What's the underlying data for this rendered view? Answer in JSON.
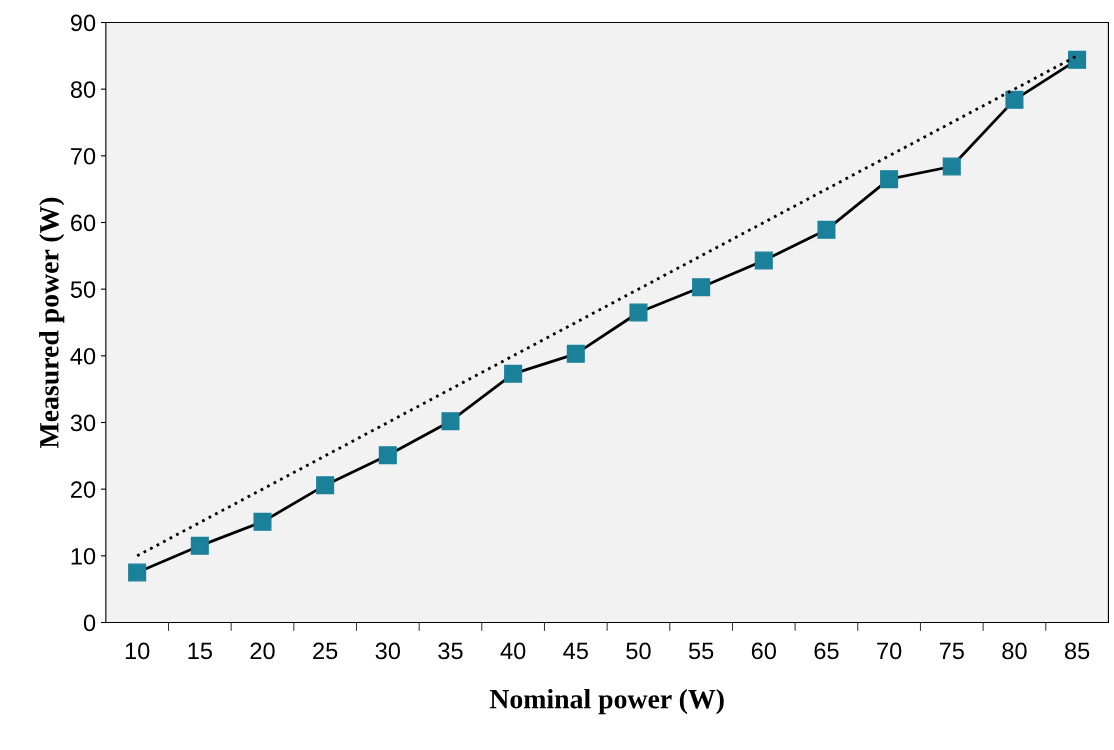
{
  "chart_data": {
    "type": "line",
    "xlabel": "Nominal power (W)",
    "ylabel": "Measured power (W)",
    "categories": [
      "10",
      "15",
      "20",
      "25",
      "30",
      "35",
      "40",
      "45",
      "50",
      "55",
      "60",
      "65",
      "70",
      "75",
      "80",
      "85"
    ],
    "series": [
      {
        "color": "#000000",
        "line_style": "dotted",
        "marker": "none",
        "values": [
          10,
          15,
          20,
          25,
          30,
          35,
          40,
          45,
          50,
          55,
          60,
          65,
          70,
          75,
          80,
          85
        ]
      },
      {
        "color": "#1b819a",
        "line_style": "solid",
        "marker": "square",
        "values": [
          7.5,
          11.5,
          15.1,
          20.6,
          25.1,
          30.2,
          37.3,
          40.3,
          46.5,
          50.3,
          54.3,
          58.9,
          66.5,
          68.4,
          78.4,
          84.4
        ]
      }
    ],
    "ylim": [
      0,
      90
    ],
    "yticks": [
      0,
      10,
      20,
      30,
      40,
      50,
      60,
      70,
      80,
      90
    ],
    "grid": false,
    "legend": false
  }
}
